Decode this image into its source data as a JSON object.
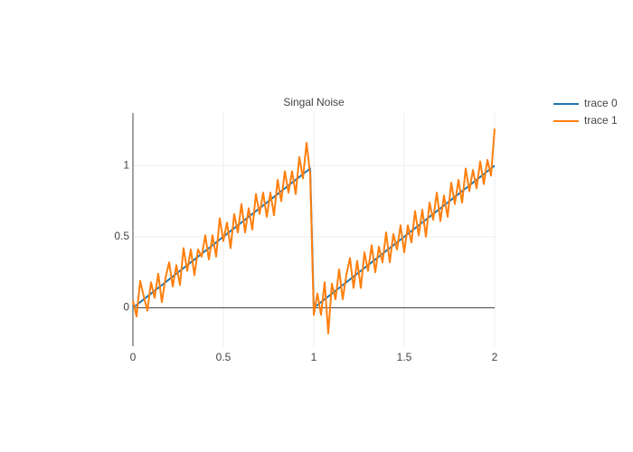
{
  "chart_data": {
    "type": "line",
    "title": "Singal Noise",
    "x": [
      0,
      0.02,
      0.04,
      0.06,
      0.08,
      0.1,
      0.12,
      0.14,
      0.16,
      0.18,
      0.2,
      0.22,
      0.24,
      0.26,
      0.28,
      0.3,
      0.32,
      0.34,
      0.36,
      0.38,
      0.4,
      0.42,
      0.44,
      0.46,
      0.48,
      0.5,
      0.52,
      0.54,
      0.56,
      0.58,
      0.6,
      0.62,
      0.64,
      0.66,
      0.68,
      0.7,
      0.72,
      0.74,
      0.76,
      0.78,
      0.8,
      0.82,
      0.84,
      0.86,
      0.88,
      0.9,
      0.92,
      0.94,
      0.96,
      0.98,
      1,
      1.02,
      1.04,
      1.06,
      1.08,
      1.1,
      1.12,
      1.14,
      1.16,
      1.18,
      1.2,
      1.22,
      1.24,
      1.26,
      1.28,
      1.3,
      1.32,
      1.34,
      1.36,
      1.38,
      1.4,
      1.42,
      1.44,
      1.46,
      1.48,
      1.5,
      1.52,
      1.54,
      1.56,
      1.58,
      1.6,
      1.62,
      1.64,
      1.66,
      1.68,
      1.7,
      1.72,
      1.74,
      1.76,
      1.78,
      1.8,
      1.82,
      1.84,
      1.86,
      1.88,
      1.9,
      1.92,
      1.94,
      1.96,
      1.98,
      2
    ],
    "series": [
      {
        "name": "trace 0",
        "color": "#1f77b4",
        "values": [
          0,
          0.02,
          0.04,
          0.06,
          0.08,
          0.1,
          0.12,
          0.14,
          0.16,
          0.18,
          0.2,
          0.22,
          0.24,
          0.26,
          0.28,
          0.3,
          0.32,
          0.34,
          0.36,
          0.38,
          0.4,
          0.42,
          0.44,
          0.46,
          0.48,
          0.5,
          0.52,
          0.54,
          0.56,
          0.58,
          0.6,
          0.62,
          0.64,
          0.66,
          0.68,
          0.7,
          0.72,
          0.74,
          0.76,
          0.78,
          0.8,
          0.82,
          0.84,
          0.86,
          0.88,
          0.9,
          0.92,
          0.94,
          0.96,
          0.98,
          0,
          0.02,
          0.04,
          0.06,
          0.08,
          0.1,
          0.12,
          0.14,
          0.16,
          0.18,
          0.2,
          0.22,
          0.24,
          0.26,
          0.28,
          0.3,
          0.32,
          0.34,
          0.36,
          0.38,
          0.4,
          0.42,
          0.44,
          0.46,
          0.48,
          0.5,
          0.52,
          0.54,
          0.56,
          0.58,
          0.6,
          0.62,
          0.64,
          0.66,
          0.68,
          0.7,
          0.72,
          0.74,
          0.76,
          0.78,
          0.8,
          0.82,
          0.84,
          0.86,
          0.88,
          0.9,
          0.92,
          0.94,
          0.96,
          0.98,
          1
        ]
      },
      {
        "name": "trace 1",
        "color": "#ff7f0e",
        "values": [
          0.05,
          -0.06,
          0.19,
          0.08,
          -0.02,
          0.18,
          0.07,
          0.24,
          0.04,
          0.21,
          0.32,
          0.15,
          0.3,
          0.16,
          0.42,
          0.26,
          0.41,
          0.23,
          0.41,
          0.36,
          0.51,
          0.34,
          0.51,
          0.36,
          0.63,
          0.47,
          0.6,
          0.42,
          0.66,
          0.53,
          0.73,
          0.53,
          0.7,
          0.55,
          0.8,
          0.66,
          0.81,
          0.64,
          0.81,
          0.65,
          0.9,
          0.75,
          0.96,
          0.81,
          0.96,
          0.8,
          1.06,
          0.91,
          1.16,
          0.94,
          -0.05,
          0.1,
          -0.05,
          0.18,
          -0.18,
          0.17,
          0.06,
          0.27,
          0.06,
          0.23,
          0.35,
          0.14,
          0.33,
          0.14,
          0.39,
          0.26,
          0.44,
          0.25,
          0.43,
          0.32,
          0.53,
          0.32,
          0.52,
          0.41,
          0.58,
          0.39,
          0.58,
          0.46,
          0.68,
          0.51,
          0.69,
          0.5,
          0.74,
          0.62,
          0.81,
          0.61,
          0.79,
          0.64,
          0.88,
          0.73,
          0.9,
          0.74,
          0.98,
          0.82,
          0.97,
          0.84,
          1.03,
          0.87,
          1.04,
          0.93,
          1.26
        ]
      }
    ],
    "xlim": [
      0,
      2
    ],
    "ylim": [
      -0.27,
      1.37
    ],
    "xticks": [
      0,
      0.5,
      1,
      1.5,
      2
    ],
    "yticks": [
      0,
      0.5,
      1
    ],
    "grid": true
  }
}
